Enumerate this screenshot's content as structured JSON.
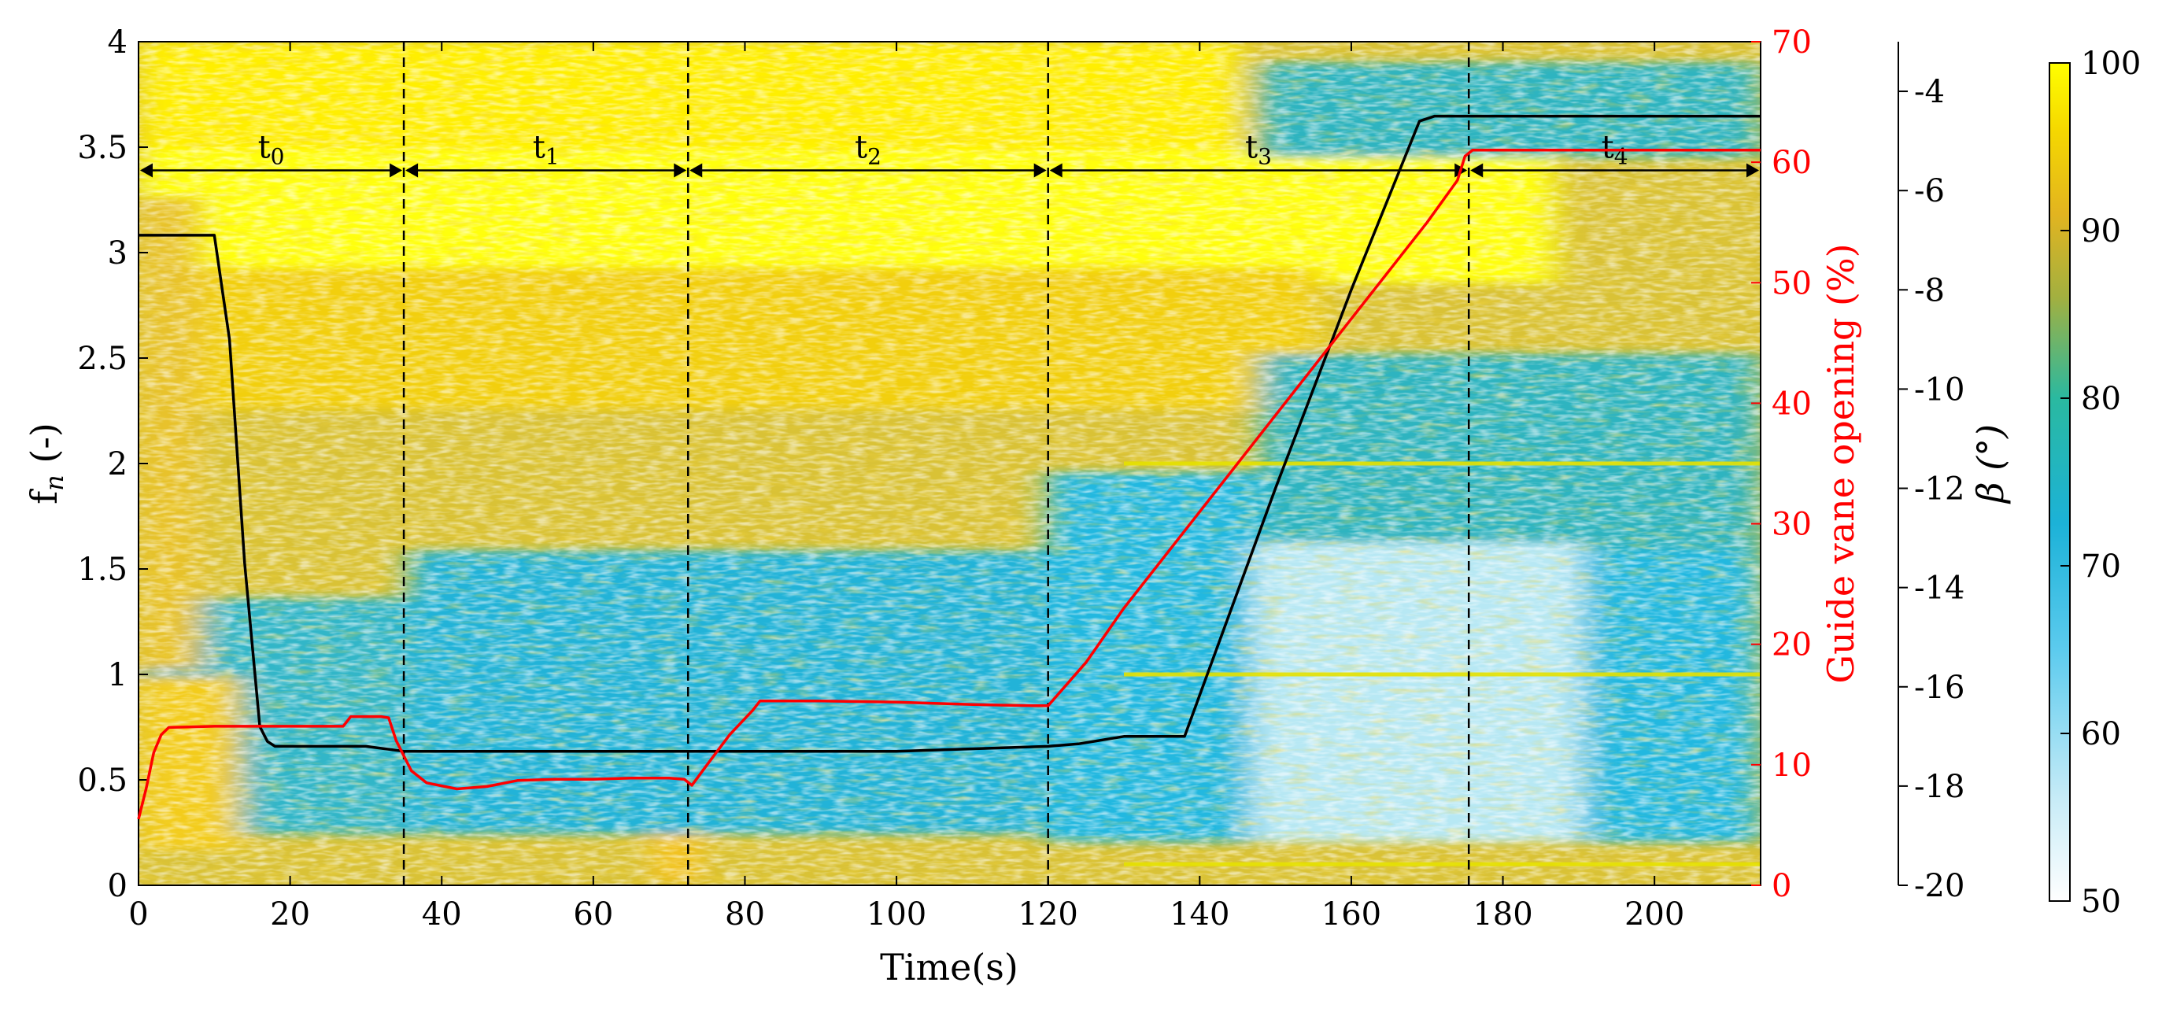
{
  "chart_data": {
    "type": "heatmap",
    "title": "",
    "xlabel": "Time(s)",
    "ylabel_left": "f_n (-)",
    "ylabel_right_red": "Guide vane opening (%)",
    "ylabel_right_black": "β (°)",
    "xlim": [
      0,
      214
    ],
    "ylim_left": [
      0,
      4
    ],
    "ylim_red": [
      0,
      70
    ],
    "ylim_beta": [
      -20,
      -3
    ],
    "colorbar": {
      "label": "",
      "min": 50,
      "max": 100,
      "ticks": [
        50,
        60,
        70,
        80,
        90,
        100
      ]
    },
    "x_ticks": [
      0,
      20,
      40,
      60,
      80,
      100,
      120,
      140,
      160,
      180,
      200
    ],
    "y_ticks_left": [
      0,
      0.5,
      1,
      1.5,
      2,
      2.5,
      3,
      3.5,
      4
    ],
    "y_ticks_red": [
      0,
      10,
      20,
      30,
      40,
      50,
      60,
      70
    ],
    "y_ticks_beta": [
      -20,
      -18,
      -16,
      -14,
      -12,
      -10,
      -8,
      -6,
      -4
    ],
    "periods": [
      {
        "label": "t",
        "sub": "0",
        "start": 0,
        "end": 35
      },
      {
        "label": "t",
        "sub": "1",
        "start": 35,
        "end": 72.5
      },
      {
        "label": "t",
        "sub": "2",
        "start": 72.5,
        "end": 120
      },
      {
        "label": "t",
        "sub": "3",
        "start": 120,
        "end": 175.5
      },
      {
        "label": "t",
        "sub": "4",
        "start": 175.5,
        "end": 214
      }
    ],
    "series": [
      {
        "name": "",
        "color": "#000000",
        "axis": "beta",
        "x": [
          0,
          10,
          12,
          14,
          16,
          17,
          18,
          20,
          30,
          35,
          40,
          72,
          100,
          120,
          124,
          130,
          138,
          150,
          160,
          169,
          171,
          175,
          214
        ],
        "y": [
          -6.9,
          -6.9,
          -9,
          -13.5,
          -16.8,
          -17.1,
          -17.2,
          -17.2,
          -17.2,
          -17.3,
          -17.3,
          -17.3,
          -17.3,
          -17.2,
          -17.15,
          -17.0,
          -17.0,
          -12.0,
          -8.0,
          -4.6,
          -4.5,
          -4.5,
          -4.5
        ]
      },
      {
        "name": "",
        "color": "#ff0000",
        "axis": "gvo",
        "x": [
          0,
          1,
          2,
          3,
          4,
          10,
          20,
          27,
          28,
          30,
          32,
          33,
          34,
          36,
          38,
          42,
          46,
          50,
          55,
          60,
          65,
          70,
          72,
          73,
          75,
          78,
          81,
          82,
          85,
          90,
          100,
          110,
          118,
          120,
          125,
          130,
          140,
          150,
          160,
          170,
          174,
          175,
          176,
          214
        ],
        "y": [
          5.5,
          8,
          11,
          12.5,
          13.1,
          13.2,
          13.2,
          13.2,
          14,
          14,
          14,
          13.9,
          12,
          9.5,
          8.5,
          8.0,
          8.2,
          8.7,
          8.8,
          8.8,
          8.9,
          8.9,
          8.8,
          8.3,
          10,
          12.5,
          14.5,
          15.3,
          15.3,
          15.3,
          15.2,
          15.0,
          14.9,
          14.9,
          18.5,
          23,
          31,
          39,
          47,
          55,
          58.5,
          60.5,
          61,
          61
        ]
      }
    ],
    "horizontal_features_fn": [
      0.1,
      1.0,
      2.0
    ]
  }
}
